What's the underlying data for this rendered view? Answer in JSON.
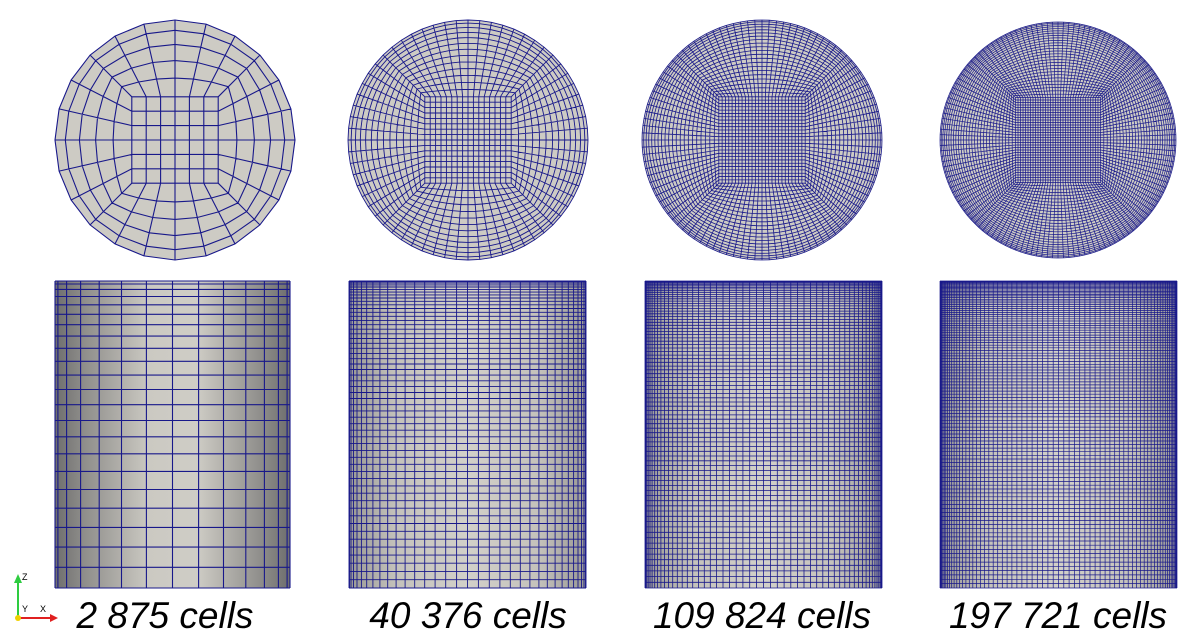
{
  "panels": [
    {
      "label": "2 875 cells"
    },
    {
      "label": "40 376 cells"
    },
    {
      "label": "109 824 cells"
    },
    {
      "label": "197 721 cells"
    }
  ],
  "axes": {
    "z": "Z",
    "y": "Y",
    "x": "X"
  }
}
